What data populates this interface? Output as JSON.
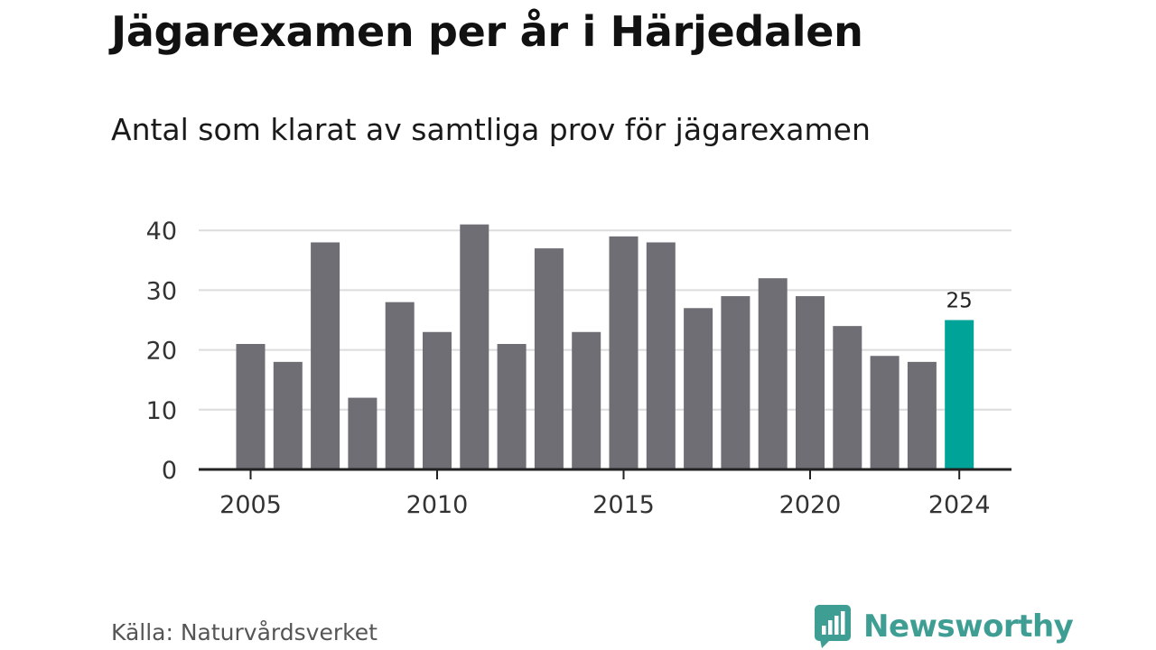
{
  "chart_data": {
    "type": "bar",
    "title": "Jägarexamen per år i Härjedalen",
    "subtitle": "Antal som klarat av samtliga prov för jägarexamen",
    "categories": [
      "2005",
      "2006",
      "2007",
      "2008",
      "2009",
      "2010",
      "2011",
      "2012",
      "2013",
      "2014",
      "2015",
      "2016",
      "2017",
      "2018",
      "2019",
      "2020",
      "2021",
      "2022",
      "2023",
      "2024"
    ],
    "values": [
      21,
      18,
      38,
      12,
      28,
      23,
      41,
      21,
      37,
      23,
      39,
      38,
      27,
      29,
      32,
      29,
      24,
      19,
      18,
      25
    ],
    "x_tick_labels": [
      "2005",
      "2010",
      "2015",
      "2020",
      "2024"
    ],
    "y_ticks": [
      0,
      10,
      20,
      30,
      40
    ],
    "ylim": [
      0,
      42
    ],
    "highlight": {
      "category": "2024",
      "label": "25"
    },
    "grid": true,
    "xlabel": "",
    "ylabel": ""
  },
  "colors": {
    "bar": "#6f6e75",
    "highlight": "#00a398",
    "grid": "#dcdcdc",
    "axis": "#222222",
    "brand": "#3f9e94"
  },
  "footer": {
    "source": "Källa: Naturvårdsverket",
    "brand": "Newsworthy",
    "brand_icon": "newsworthy-logo-icon"
  }
}
